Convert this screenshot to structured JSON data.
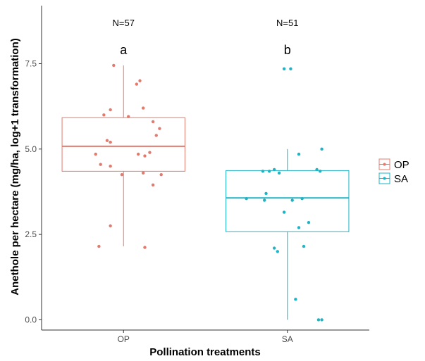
{
  "chart_data": {
    "type": "box",
    "xlabel": "Pollination treatments",
    "ylabel": "Anethole per hectare (mg/ha, log+1 transformation)",
    "categories": [
      "OP",
      "SA"
    ],
    "ylim": [
      -0.3,
      9.2
    ],
    "yticks": [
      0.0,
      2.5,
      5.0,
      7.5
    ],
    "ytick_labels": [
      "0.0",
      "2.5",
      "5.0",
      "7.5"
    ],
    "grid": false,
    "legend": {
      "placement": "right",
      "entries": [
        "OP",
        "SA"
      ]
    },
    "colors": {
      "OP": "#e07b6f",
      "SA": "#1fb3c4"
    },
    "series": [
      {
        "name": "OP",
        "n_label": "N=57",
        "group_letter": "a",
        "box": {
          "min": 2.15,
          "q1": 4.35,
          "median": 5.08,
          "q3": 5.92,
          "max": 7.45
        },
        "points": [
          {
            "x": -0.06,
            "y": 7.45
          },
          {
            "x": 0.1,
            "y": 7.0
          },
          {
            "x": 0.08,
            "y": 6.9
          },
          {
            "x": 0.12,
            "y": 6.2
          },
          {
            "x": -0.08,
            "y": 6.15
          },
          {
            "x": -0.12,
            "y": 6.0
          },
          {
            "x": 0.03,
            "y": 5.95
          },
          {
            "x": 0.18,
            "y": 5.8
          },
          {
            "x": 0.22,
            "y": 5.6
          },
          {
            "x": 0.2,
            "y": 5.4
          },
          {
            "x": -0.1,
            "y": 5.25
          },
          {
            "x": -0.08,
            "y": 5.2
          },
          {
            "x": 0.16,
            "y": 4.9
          },
          {
            "x": -0.17,
            "y": 4.85
          },
          {
            "x": 0.09,
            "y": 4.85
          },
          {
            "x": 0.13,
            "y": 4.8
          },
          {
            "x": -0.14,
            "y": 4.55
          },
          {
            "x": -0.08,
            "y": 4.5
          },
          {
            "x": 0.12,
            "y": 4.3
          },
          {
            "x": -0.01,
            "y": 4.25
          },
          {
            "x": 0.23,
            "y": 4.25
          },
          {
            "x": 0.18,
            "y": 3.95
          },
          {
            "x": -0.08,
            "y": 2.75
          },
          {
            "x": -0.15,
            "y": 2.15
          },
          {
            "x": 0.13,
            "y": 2.12
          }
        ]
      },
      {
        "name": "SA",
        "n_label": "N=51",
        "group_letter": "b",
        "box": {
          "min": 0.0,
          "q1": 2.58,
          "median": 3.57,
          "q3": 4.37,
          "max": 5.0
        },
        "points": [
          {
            "x": -0.02,
            "y": 7.35
          },
          {
            "x": 0.02,
            "y": 7.35
          },
          {
            "x": 0.21,
            "y": 5.0
          },
          {
            "x": 0.07,
            "y": 4.85
          },
          {
            "x": 0.18,
            "y": 4.4
          },
          {
            "x": 0.2,
            "y": 4.35
          },
          {
            "x": -0.15,
            "y": 4.35
          },
          {
            "x": -0.11,
            "y": 4.35
          },
          {
            "x": -0.08,
            "y": 4.4
          },
          {
            "x": -0.05,
            "y": 4.3
          },
          {
            "x": -0.13,
            "y": 3.7
          },
          {
            "x": -0.25,
            "y": 3.55
          },
          {
            "x": -0.14,
            "y": 3.5
          },
          {
            "x": 0.03,
            "y": 3.5
          },
          {
            "x": 0.09,
            "y": 3.55
          },
          {
            "x": -0.02,
            "y": 3.15
          },
          {
            "x": 0.13,
            "y": 2.85
          },
          {
            "x": 0.07,
            "y": 2.7
          },
          {
            "x": -0.08,
            "y": 2.1
          },
          {
            "x": -0.06,
            "y": 2.0
          },
          {
            "x": 0.1,
            "y": 2.15
          },
          {
            "x": 0.05,
            "y": 0.6
          },
          {
            "x": 0.19,
            "y": 0.0
          },
          {
            "x": 0.21,
            "y": 0.0
          }
        ]
      }
    ]
  }
}
